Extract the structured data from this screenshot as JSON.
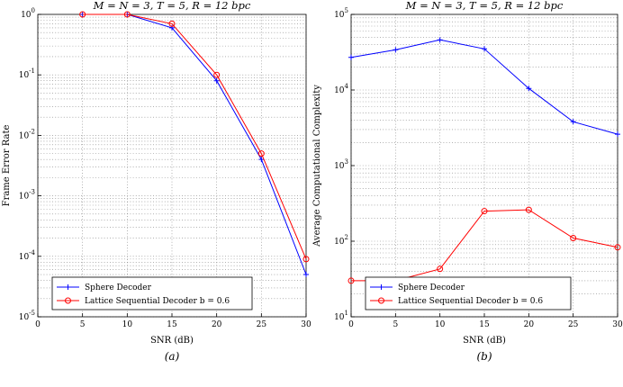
{
  "charts": [
    {
      "id": "a",
      "title": "M = N = 3, T = 5, R = 12 bpc",
      "xlabel": "SNR (dB)",
      "ylabel": "Frame Error Rate",
      "caption": "(a)",
      "x_ticks": [
        "0",
        "5",
        "10",
        "15",
        "20",
        "25",
        "30"
      ],
      "y_ticks": [
        "10^-5",
        "10^-4",
        "10^-3",
        "10^-2",
        "10^-1",
        "10^0"
      ],
      "legend": [
        "Sphere Decoder",
        "Lattice Sequential Decoder b = 0.6"
      ]
    },
    {
      "id": "b",
      "title": "M = N = 3, T = 5, R = 12 bpc",
      "xlabel": "SNR (dB)",
      "ylabel": "Average Computational Complexity",
      "caption": "(b)",
      "x_ticks": [
        "0",
        "5",
        "10",
        "15",
        "20",
        "25",
        "30"
      ],
      "y_ticks": [
        "10^1",
        "10^2",
        "10^3",
        "10^4",
        "10^5"
      ],
      "legend": [
        "Sphere Decoder",
        "Lattice Sequential Decoder b = 0.6"
      ]
    }
  ],
  "colors": {
    "sphere": "#0000ff",
    "lattice": "#ff0000",
    "grid": "#808080",
    "axis": "#000000"
  },
  "chart_data": [
    {
      "type": "line",
      "title": "M = N = 3, T = 5, R = 12 bpc",
      "xlabel": "SNR (dB)",
      "ylabel": "Frame Error Rate",
      "xlim": [
        0,
        30
      ],
      "ylim": [
        1e-05,
        1
      ],
      "yscale": "log",
      "grid": true,
      "legend_position": "bottom-left",
      "series": [
        {
          "name": "Sphere Decoder",
          "marker": "plus",
          "x": [
            5,
            10,
            15,
            20,
            25,
            30
          ],
          "y": [
            1,
            1,
            0.6,
            0.08,
            0.004,
            5e-05
          ]
        },
        {
          "name": "Lattice Sequential Decoder b = 0.6",
          "marker": "circle",
          "x": [
            5,
            10,
            15,
            20,
            25,
            30
          ],
          "y": [
            1,
            1,
            0.7,
            0.1,
            0.005,
            9e-05
          ]
        }
      ]
    },
    {
      "type": "line",
      "title": "M = N = 3, T = 5, R = 12 bpc",
      "xlabel": "SNR (dB)",
      "ylabel": "Average Computational Complexity",
      "xlim": [
        0,
        30
      ],
      "ylim": [
        10,
        100000
      ],
      "yscale": "log",
      "grid": true,
      "legend_position": "bottom-left",
      "series": [
        {
          "name": "Sphere Decoder",
          "marker": "plus",
          "x": [
            0,
            5,
            10,
            15,
            20,
            25,
            30
          ],
          "y": [
            27000,
            34000,
            46000,
            35000,
            10500,
            3800,
            2600
          ]
        },
        {
          "name": "Lattice Sequential Decoder b = 0.6",
          "marker": "circle",
          "x": [
            0,
            5,
            10,
            15,
            20,
            25,
            30
          ],
          "y": [
            30,
            30,
            43,
            250,
            260,
            110,
            83
          ]
        }
      ]
    }
  ]
}
